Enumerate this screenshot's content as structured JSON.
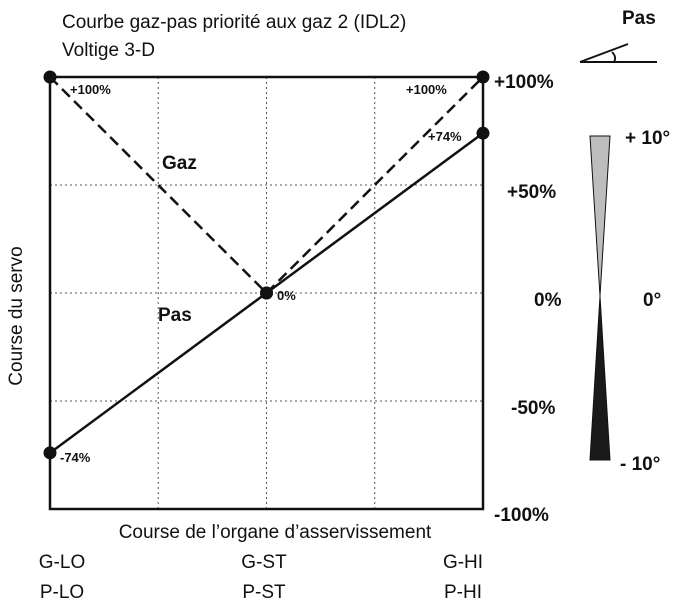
{
  "chart_data": {
    "type": "line",
    "title": "Courbe gaz-pas priorité aux gaz 2 (IDL2)",
    "subtitle": "Voltige 3-D",
    "xlabel": "Course de l’organe d’asservissement",
    "ylabel": "Course du servo",
    "xlim": [
      -100,
      100
    ],
    "ylim": [
      -100,
      100
    ],
    "grid": true,
    "x_tick_labels_top": [
      "G-LO",
      "G-ST",
      "G-HI"
    ],
    "x_tick_labels_bottom": [
      "P-LO",
      "P-ST",
      "P-HI"
    ],
    "y_tick_labels": [
      "+100%",
      "+50%",
      "0%",
      "-50%",
      "-100%"
    ],
    "y_tick_values": [
      100,
      50,
      0,
      -50,
      -100
    ],
    "series": [
      {
        "name": "Gaz",
        "style": "dashed",
        "x": [
          -100,
          0,
          100
        ],
        "values": [
          100,
          0,
          100
        ],
        "point_labels": [
          "+100%",
          "",
          "+100%"
        ]
      },
      {
        "name": "Pas",
        "style": "solid",
        "x": [
          -100,
          0,
          100
        ],
        "values": [
          -74,
          0,
          74
        ],
        "point_labels": [
          "-74%",
          "0%",
          "+74%"
        ]
      }
    ],
    "pitch_indicator": {
      "label": "Pas",
      "top_label": "+ 10°",
      "middle_label": "0°",
      "bottom_label": "- 10°",
      "top_value": 10,
      "bottom_value": -10,
      "top_color": "#bdbdbd",
      "bottom_color": "#1a1a1a"
    }
  }
}
